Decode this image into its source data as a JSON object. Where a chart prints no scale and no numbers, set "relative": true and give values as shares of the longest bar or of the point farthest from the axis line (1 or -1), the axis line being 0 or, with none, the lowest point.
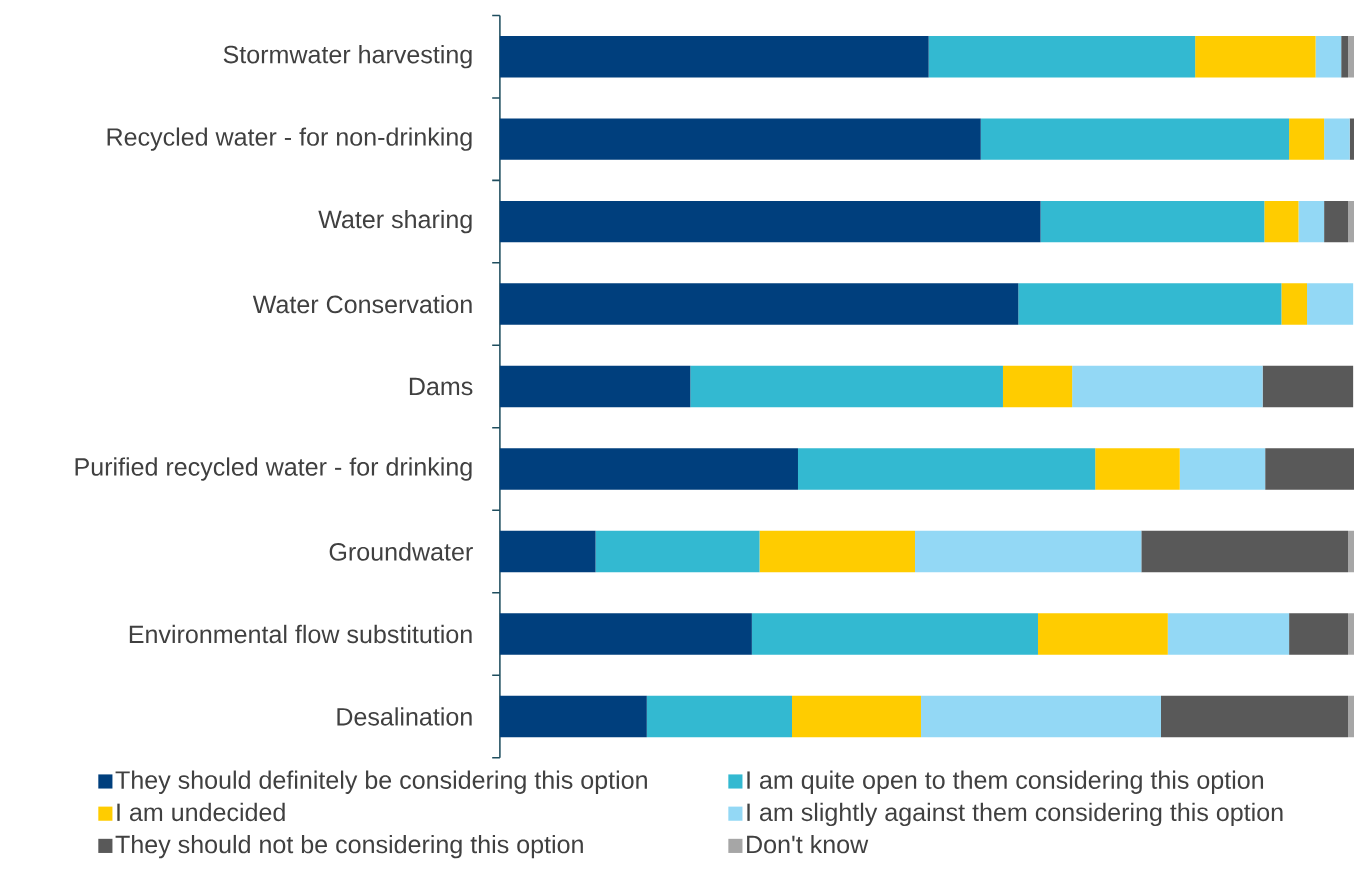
{
  "chart_data": {
    "type": "bar",
    "orientation": "horizontal",
    "stacked": true,
    "relative": true,
    "legend": "bottom",
    "categories": [
      "Stormwater harvesting",
      "Recycled water - for non-drinking",
      "Water sharing",
      "Water Conservation",
      "Dams",
      "Purified recycled water - for drinking",
      "Groundwater",
      "Environmental flow substitution",
      "Desalination"
    ],
    "series": [
      {
        "name": "They should definitely be considering this option",
        "color": "#003f7d",
        "values": [
          0.502,
          0.563,
          0.633,
          0.607,
          0.223,
          0.349,
          0.112,
          0.295,
          0.172
        ]
      },
      {
        "name": "I am quite open to them considering this option",
        "color": "#33b9d1",
        "values": [
          0.312,
          0.361,
          0.262,
          0.308,
          0.366,
          0.348,
          0.192,
          0.335,
          0.17
        ]
      },
      {
        "name": "I am undecided",
        "color": "#ffcc00",
        "values": [
          0.141,
          0.041,
          0.04,
          0.03,
          0.081,
          0.099,
          0.182,
          0.152,
          0.151
        ]
      },
      {
        "name": "I am slightly against them considering this option",
        "color": "#93d8f5",
        "values": [
          0.03,
          0.03,
          0.03,
          0.054,
          0.223,
          0.1,
          0.265,
          0.142,
          0.281
        ]
      },
      {
        "name": "They should not be considering this option",
        "color": "#595959",
        "values": [
          0.008,
          0.005,
          0.028,
          0,
          0.106,
          0.104,
          0.242,
          0.069,
          0.219
        ]
      },
      {
        "name": "Don't know",
        "color": "#a6a6a6",
        "values": [
          0.007,
          0,
          0.007,
          0,
          0,
          0,
          0.007,
          0.007,
          0.007
        ]
      }
    ]
  }
}
